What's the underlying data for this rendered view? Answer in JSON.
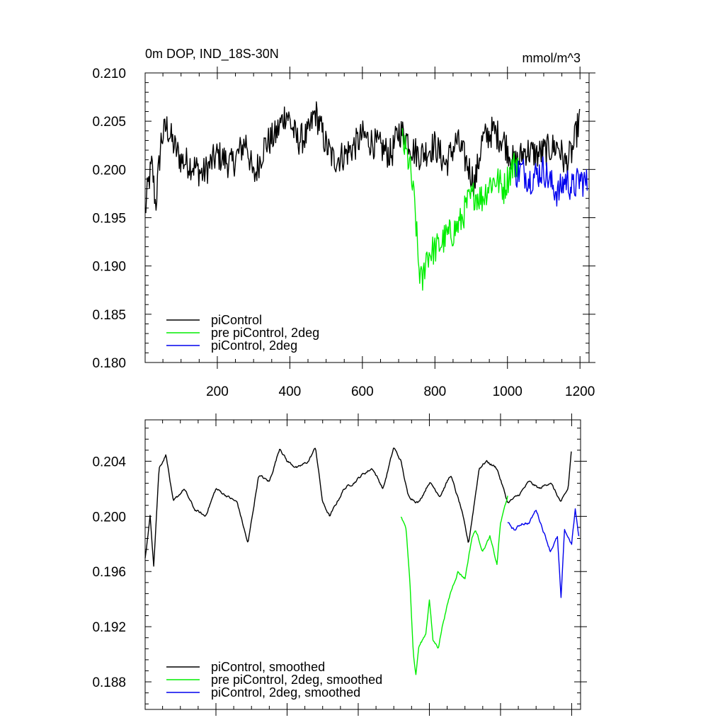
{
  "chart_data": [
    {
      "type": "line",
      "title": "0m DOP, IND_18S-30N",
      "units": "mmol/m^3",
      "xlim": [
        1,
        1225
      ],
      "ylim": [
        0.18,
        0.21
      ],
      "x_ticks": [
        200,
        400,
        600,
        800,
        1000,
        1200
      ],
      "x_tick_labels": [
        "200",
        "400",
        "600",
        "800",
        "1000",
        "1200"
      ],
      "y_ticks": [
        0.18,
        0.185,
        0.19,
        0.195,
        0.2,
        0.205,
        0.21
      ],
      "y_tick_labels": [
        "0.180",
        "0.185",
        "0.190",
        "0.195",
        "0.200",
        "0.205",
        "0.210"
      ],
      "legend_position": "bottom-left",
      "noise": "high",
      "series": [
        {
          "name": "piControl",
          "color": "#000000",
          "x_start": 1,
          "x_end": 1200,
          "anchors": [
            [
              1,
              0.1955
            ],
            [
              10,
              0.1985
            ],
            [
              20,
              0.2005
            ],
            [
              30,
              0.1962
            ],
            [
              45,
              0.203
            ],
            [
              60,
              0.2045
            ],
            [
              80,
              0.2025
            ],
            [
              100,
              0.201
            ],
            [
              130,
              0.2005
            ],
            [
              160,
              0.1995
            ],
            [
              200,
              0.2015
            ],
            [
              240,
              0.2005
            ],
            [
              280,
              0.203
            ],
            [
              300,
              0.199
            ],
            [
              330,
              0.2025
            ],
            [
              360,
              0.2035
            ],
            [
              390,
              0.206
            ],
            [
              420,
              0.203
            ],
            [
              450,
              0.2035
            ],
            [
              470,
              0.206
            ],
            [
              500,
              0.2025
            ],
            [
              520,
              0.201
            ],
            [
              550,
              0.2015
            ],
            [
              580,
              0.2025
            ],
            [
              600,
              0.2035
            ],
            [
              640,
              0.2025
            ],
            [
              680,
              0.2015
            ],
            [
              700,
              0.204
            ],
            [
              720,
              0.2035
            ],
            [
              740,
              0.202
            ],
            [
              760,
              0.2015
            ],
            [
              800,
              0.2025
            ],
            [
              830,
              0.2005
            ],
            [
              860,
              0.203
            ],
            [
              890,
              0.2005
            ],
            [
              910,
              0.1985
            ],
            [
              930,
              0.203
            ],
            [
              960,
              0.204
            ],
            [
              990,
              0.203
            ],
            [
              1020,
              0.2005
            ],
            [
              1050,
              0.202
            ],
            [
              1080,
              0.2015
            ],
            [
              1110,
              0.202
            ],
            [
              1140,
              0.2025
            ],
            [
              1160,
              0.2005
            ],
            [
              1180,
              0.202
            ],
            [
              1200,
              0.2055
            ]
          ]
        },
        {
          "name": "pre piControl, 2deg",
          "color": "#00ee00",
          "x_start": 710,
          "x_end": 1030,
          "anchors": [
            [
              710,
              0.203
            ],
            [
              730,
              0.2005
            ],
            [
              745,
              0.196
            ],
            [
              755,
              0.19
            ],
            [
              765,
              0.188
            ],
            [
              775,
              0.191
            ],
            [
              790,
              0.1915
            ],
            [
              810,
              0.192
            ],
            [
              830,
              0.193
            ],
            [
              850,
              0.1935
            ],
            [
              870,
              0.1945
            ],
            [
              890,
              0.1965
            ],
            [
              910,
              0.1975
            ],
            [
              930,
              0.197
            ],
            [
              950,
              0.1985
            ],
            [
              970,
              0.199
            ],
            [
              990,
              0.198
            ],
            [
              1010,
              0.2
            ],
            [
              1030,
              0.201
            ]
          ]
        },
        {
          "name": "piControl, 2deg",
          "color": "#0000ee",
          "x_start": 1020,
          "x_end": 1220,
          "anchors": [
            [
              1020,
              0.1995
            ],
            [
              1040,
              0.2
            ],
            [
              1060,
              0.199
            ],
            [
              1080,
              0.1995
            ],
            [
              1100,
              0.2
            ],
            [
              1120,
              0.1985
            ],
            [
              1140,
              0.1975
            ],
            [
              1160,
              0.199
            ],
            [
              1180,
              0.198
            ],
            [
              1200,
              0.199
            ],
            [
              1220,
              0.1985
            ]
          ]
        }
      ]
    },
    {
      "type": "line",
      "title": "",
      "xlim": [
        1,
        1225
      ],
      "ylim": [
        0.186,
        0.207
      ],
      "x_ticks": [
        200,
        400,
        600,
        800,
        1000,
        1200
      ],
      "x_tick_labels": [],
      "y_ticks": [
        0.188,
        0.192,
        0.196,
        0.2,
        0.204
      ],
      "y_tick_labels": [
        "0.188",
        "0.192",
        "0.196",
        "0.200",
        "0.204"
      ],
      "legend_position": "bottom-left",
      "noise": "low",
      "series": [
        {
          "name": "piControl, smoothed",
          "color": "#000000",
          "x_start": 1,
          "x_end": 1200,
          "anchors": [
            [
              1,
              0.197
            ],
            [
              15,
              0.2
            ],
            [
              25,
              0.1965
            ],
            [
              40,
              0.2035
            ],
            [
              60,
              0.2045
            ],
            [
              80,
              0.201
            ],
            [
              110,
              0.202
            ],
            [
              140,
              0.2005
            ],
            [
              170,
              0.2
            ],
            [
              200,
              0.202
            ],
            [
              230,
              0.2015
            ],
            [
              260,
              0.201
            ],
            [
              290,
              0.198
            ],
            [
              320,
              0.203
            ],
            [
              350,
              0.2025
            ],
            [
              380,
              0.205
            ],
            [
              400,
              0.204
            ],
            [
              430,
              0.2035
            ],
            [
              460,
              0.204
            ],
            [
              480,
              0.205
            ],
            [
              500,
              0.201
            ],
            [
              520,
              0.2
            ],
            [
              540,
              0.201
            ],
            [
              560,
              0.202
            ],
            [
              590,
              0.2025
            ],
            [
              610,
              0.203
            ],
            [
              640,
              0.2035
            ],
            [
              670,
              0.202
            ],
            [
              700,
              0.205
            ],
            [
              720,
              0.204
            ],
            [
              740,
              0.2015
            ],
            [
              770,
              0.201
            ],
            [
              800,
              0.2025
            ],
            [
              830,
              0.2015
            ],
            [
              860,
              0.203
            ],
            [
              890,
              0.2005
            ],
            [
              910,
              0.198
            ],
            [
              940,
              0.2035
            ],
            [
              960,
              0.204
            ],
            [
              990,
              0.2035
            ],
            [
              1020,
              0.201
            ],
            [
              1050,
              0.2015
            ],
            [
              1080,
              0.2025
            ],
            [
              1110,
              0.202
            ],
            [
              1140,
              0.2025
            ],
            [
              1170,
              0.201
            ],
            [
              1190,
              0.202
            ],
            [
              1200,
              0.205
            ]
          ]
        },
        {
          "name": "pre piControl, 2deg, smoothed",
          "color": "#00ee00",
          "x_start": 720,
          "x_end": 1020,
          "anchors": [
            [
              720,
              0.2
            ],
            [
              735,
              0.199
            ],
            [
              745,
              0.1955
            ],
            [
              755,
              0.19
            ],
            [
              762,
              0.1885
            ],
            [
              770,
              0.1905
            ],
            [
              790,
              0.1915
            ],
            [
              800,
              0.194
            ],
            [
              810,
              0.191
            ],
            [
              825,
              0.1905
            ],
            [
              840,
              0.1925
            ],
            [
              860,
              0.1945
            ],
            [
              880,
              0.196
            ],
            [
              900,
              0.1955
            ],
            [
              920,
              0.1985
            ],
            [
              930,
              0.199
            ],
            [
              950,
              0.1975
            ],
            [
              970,
              0.1985
            ],
            [
              990,
              0.1965
            ],
            [
              1000,
              0.1995
            ],
            [
              1020,
              0.2015
            ]
          ]
        },
        {
          "name": "piControl, 2deg, smoothed",
          "color": "#0000ee",
          "x_start": 1020,
          "x_end": 1220,
          "anchors": [
            [
              1020,
              0.1995
            ],
            [
              1040,
              0.199
            ],
            [
              1060,
              0.1995
            ],
            [
              1080,
              0.1995
            ],
            [
              1100,
              0.2005
            ],
            [
              1120,
              0.199
            ],
            [
              1140,
              0.1975
            ],
            [
              1160,
              0.1985
            ],
            [
              1170,
              0.194
            ],
            [
              1180,
              0.199
            ],
            [
              1200,
              0.198
            ],
            [
              1210,
              0.2005
            ],
            [
              1220,
              0.1985
            ]
          ]
        }
      ]
    }
  ]
}
